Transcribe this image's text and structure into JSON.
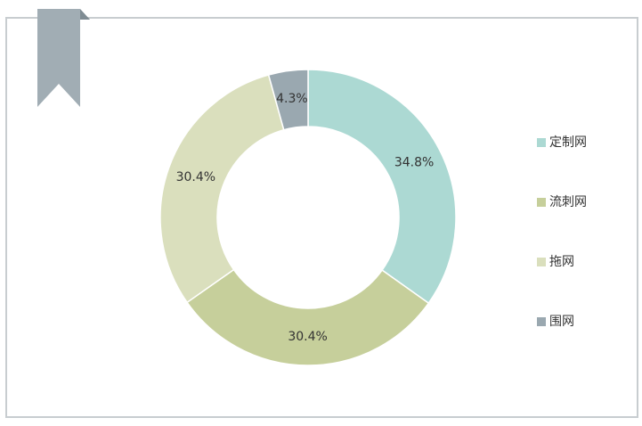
{
  "chart_data": {
    "type": "pie",
    "categories": [
      "定制网",
      "流刺网",
      "拖网",
      "围网"
    ],
    "values": [
      34.8,
      30.4,
      30.4,
      4.3
    ],
    "value_labels": [
      "34.8%",
      "30.4%",
      "30.4%",
      "4.3%"
    ],
    "colors": [
      "#acd9d3",
      "#c6cf9b",
      "#dadfbd",
      "#9aa8b0"
    ],
    "legend": "right"
  }
}
